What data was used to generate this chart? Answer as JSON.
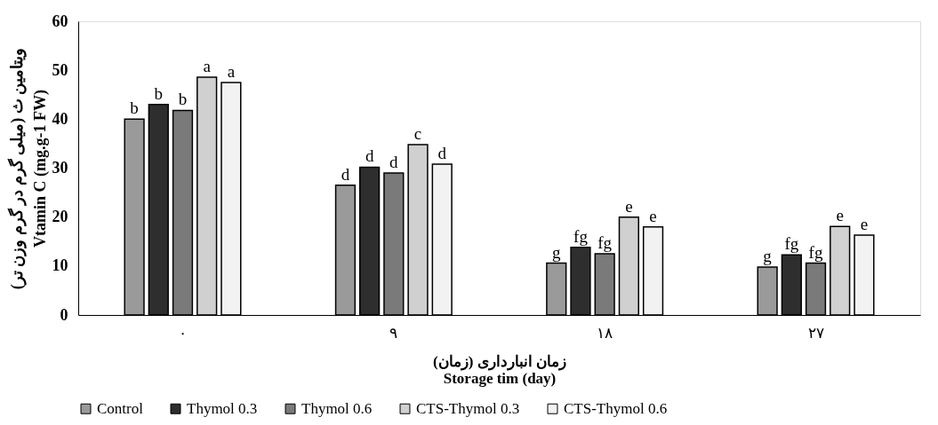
{
  "chart_data": {
    "type": "bar",
    "categories": [
      "۰",
      "۹",
      "۱۸",
      "۲۷"
    ],
    "xlabel": "زمان انبارداری (زمان)\nStorage tim (day)",
    "ylabel": "ویتامین ث (میلی گرم در گرم وزن تر)\nVtamin C (mg.g-1 FW)",
    "ylim": [
      0,
      60
    ],
    "yticks": [
      0,
      10,
      20,
      30,
      40,
      50,
      60
    ],
    "grid": false,
    "legend": "bottom",
    "series": [
      {
        "name": "Control",
        "color": "#9a9a9a",
        "values": [
          40,
          26.5,
          10.6,
          9.8
        ],
        "value_labels": [
          "b",
          "d",
          "g",
          "g"
        ]
      },
      {
        "name": "Thymol 0.3",
        "color": "#2e2e2e",
        "values": [
          43,
          30.2,
          13.8,
          12.3
        ],
        "value_labels": [
          "b",
          "d",
          "fg",
          "fg"
        ]
      },
      {
        "name": "Thymol 0.6",
        "color": "#7a7a7a",
        "values": [
          41.8,
          29,
          12.5,
          10.6
        ],
        "value_labels": [
          "b",
          "d",
          "fg",
          "fg"
        ]
      },
      {
        "name": "CTS-Thymol 0.3",
        "color": "#d0d0d0",
        "values": [
          48.6,
          34.8,
          20,
          18.1
        ],
        "value_labels": [
          "a",
          "c",
          "e",
          "e"
        ]
      },
      {
        "name": "CTS-Thymol 0.6",
        "color": "#f2f2f2",
        "values": [
          47.5,
          30.8,
          18,
          16.3
        ],
        "value_labels": [
          "a",
          "d",
          "e",
          "e"
        ]
      }
    ]
  }
}
